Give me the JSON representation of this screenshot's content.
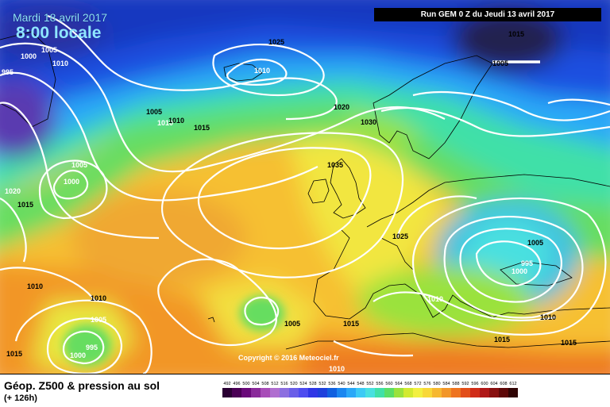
{
  "header": {
    "date": "Mardi 18 avril 2017",
    "time": "8:00 locale",
    "run": "Run GEM 0 Z du Jeudi 13 avril 2017"
  },
  "copyright": "Copyright © 2016 Meteociel.fr",
  "legend": {
    "title": "Géop. Z500 & pression au sol",
    "subtitle": "(+ 126h)",
    "scale": [
      {
        "v": "492",
        "c": "#2a0033"
      },
      {
        "v": "496",
        "c": "#4a0055"
      },
      {
        "v": "500",
        "c": "#6a0a7a"
      },
      {
        "v": "504",
        "c": "#8a2a9a"
      },
      {
        "v": "508",
        "c": "#a84db8"
      },
      {
        "v": "512",
        "c": "#b06fd0"
      },
      {
        "v": "516",
        "c": "#8c6fe0"
      },
      {
        "v": "520",
        "c": "#6a5ee8"
      },
      {
        "v": "524",
        "c": "#4e4cf0"
      },
      {
        "v": "528",
        "c": "#2f36e6"
      },
      {
        "v": "532",
        "c": "#1e40dc"
      },
      {
        "v": "536",
        "c": "#1060e0"
      },
      {
        "v": "540",
        "c": "#1a86f0"
      },
      {
        "v": "544",
        "c": "#2aa8f8"
      },
      {
        "v": "548",
        "c": "#3ccaf5"
      },
      {
        "v": "552",
        "c": "#48e0e0"
      },
      {
        "v": "556",
        "c": "#40e0a8"
      },
      {
        "v": "560",
        "c": "#5ade66"
      },
      {
        "v": "564",
        "c": "#9ae23c"
      },
      {
        "v": "568",
        "c": "#d2ea30"
      },
      {
        "v": "572",
        "c": "#f2f040"
      },
      {
        "v": "576",
        "c": "#f8d838"
      },
      {
        "v": "580",
        "c": "#f6b830"
      },
      {
        "v": "584",
        "c": "#f29628"
      },
      {
        "v": "588",
        "c": "#ee7420"
      },
      {
        "v": "592",
        "c": "#e24e1a"
      },
      {
        "v": "596",
        "c": "#d02c18"
      },
      {
        "v": "600",
        "c": "#b01818"
      },
      {
        "v": "604",
        "c": "#881010"
      },
      {
        "v": "608",
        "c": "#5e0808"
      },
      {
        "v": "612",
        "c": "#300404"
      }
    ]
  },
  "isobars": [
    {
      "t": "1015",
      "w": false
    },
    {
      "t": "1025",
      "w": false
    },
    {
      "t": "1005",
      "w": true
    },
    {
      "t": "1010",
      "w": true
    },
    {
      "t": "1000",
      "w": true
    },
    {
      "t": "995",
      "w": true
    },
    {
      "t": "1005",
      "w": false
    },
    {
      "t": "1010",
      "w": true
    },
    {
      "t": "1020",
      "w": false
    },
    {
      "t": "1005",
      "w": false
    },
    {
      "t": "1010",
      "w": false
    },
    {
      "t": "1015",
      "w": false
    },
    {
      "t": "1030",
      "w": false
    },
    {
      "t": "1005",
      "w": true
    },
    {
      "t": "1000",
      "w": true
    },
    {
      "t": "1035",
      "w": false
    },
    {
      "t": "1020",
      "w": true
    },
    {
      "t": "1015",
      "w": false
    },
    {
      "t": "1025",
      "w": false
    },
    {
      "t": "1005",
      "w": false
    },
    {
      "t": "995",
      "w": true
    },
    {
      "t": "1000",
      "w": true
    },
    {
      "t": "1010",
      "w": false
    },
    {
      "t": "1010",
      "w": false
    },
    {
      "t": "1010",
      "w": true
    },
    {
      "t": "1005",
      "w": true
    },
    {
      "t": "995",
      "w": true
    },
    {
      "t": "1000",
      "w": true
    },
    {
      "t": "1015",
      "w": false
    },
    {
      "t": "1005",
      "w": false
    },
    {
      "t": "1015",
      "w": false
    },
    {
      "t": "1015",
      "w": false
    },
    {
      "t": "1015",
      "w": false
    },
    {
      "t": "1010",
      "w": false
    },
    {
      "t": "1010",
      "w": true
    },
    {
      "t": "1010",
      "w": true
    }
  ]
}
